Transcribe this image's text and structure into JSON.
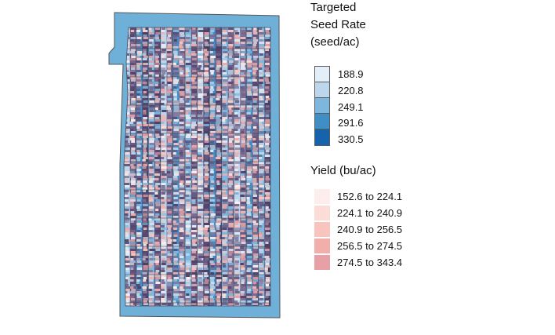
{
  "map": {
    "field_outline_color": "#555555",
    "field_background_color": "#6fb0d8"
  },
  "legend": {
    "seed": {
      "title_lines": [
        "Targeted",
        "Seed Rate",
        "(seed/ac)"
      ],
      "items": [
        {
          "label": "188.9",
          "color": "#e3eef8"
        },
        {
          "label": "220.8",
          "color": "#bcd7ec"
        },
        {
          "label": "249.1",
          "color": "#7db7dd"
        },
        {
          "label": "291.6",
          "color": "#3f8fc5"
        },
        {
          "label": "330.5",
          "color": "#1563ab"
        }
      ]
    },
    "yield": {
      "title": "Yield (bu/ac)",
      "items": [
        {
          "label": "152.6 to 224.1",
          "color": "#fdeeed"
        },
        {
          "label": "224.1 to 240.9",
          "color": "#fbdcd6"
        },
        {
          "label": "240.9 to 256.5",
          "color": "#f8c4bd"
        },
        {
          "label": "256.5 to 274.5",
          "color": "#f2aeaa"
        },
        {
          "label": "274.5 to 343.4",
          "color": "#e6a0a6"
        }
      ]
    }
  }
}
